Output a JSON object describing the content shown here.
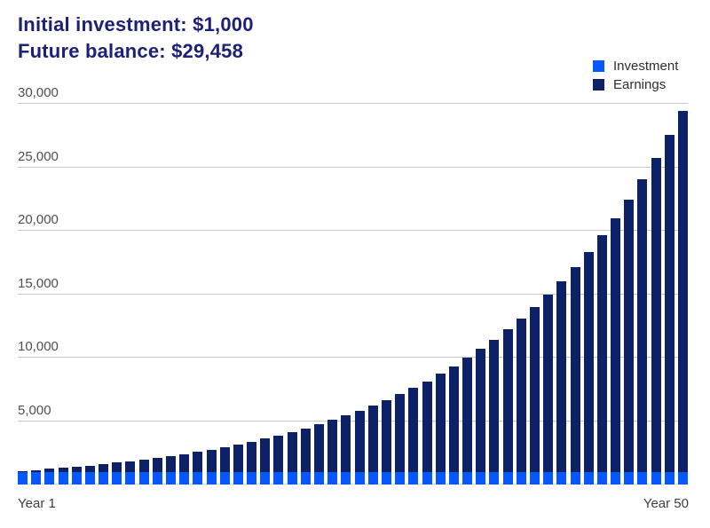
{
  "header": {
    "title_line1": "Initial investment: $1,000",
    "title_line2": "Future balance: $29,458"
  },
  "legend": [
    {
      "label": "Investment",
      "color": "#0657fc"
    },
    {
      "label": "Earnings",
      "color": "#0d2167"
    }
  ],
  "colors": {
    "investment": "#0657fc",
    "earnings": "#0d2167",
    "title_text": "#1c2177",
    "gridline": "#c9c9c9",
    "axis_text": "#4e4e4e"
  },
  "chart_data": {
    "type": "bar",
    "stacked": true,
    "title": "",
    "xlabel": "",
    "ylabel": "",
    "grid": "horizontal",
    "legend_position": "top-right",
    "ylim": [
      0,
      30000
    ],
    "yticks": [
      5000,
      10000,
      15000,
      20000,
      25000,
      30000
    ],
    "ytick_labels": [
      "5,000",
      "10,000",
      "15,000",
      "20,000",
      "25,000",
      "30,000"
    ],
    "x_first_label": "Year 1",
    "x_last_label": "Year 50",
    "years": 50,
    "investment_per_year": 1000,
    "series": [
      {
        "name": "Investment",
        "constant_value": 1000
      },
      {
        "name": "Earnings",
        "values": [
          70,
          145,
          225,
          311,
          403,
          501,
          606,
          718,
          838,
          967,
          1105,
          1252,
          1410,
          1579,
          1759,
          1952,
          2159,
          2380,
          2617,
          2870,
          3141,
          3430,
          3741,
          4072,
          4427,
          4807,
          5214,
          5649,
          6114,
          6612,
          7145,
          7715,
          8325,
          8978,
          9677,
          10424,
          11224,
          12079,
          12995,
          13974,
          15023,
          16144,
          17344,
          18628,
          20002,
          21473,
          23046,
          24729,
          26530,
          28458
        ]
      }
    ],
    "totals": [
      1070,
      1145,
      1225,
      1311,
      1403,
      1501,
      1606,
      1718,
      1838,
      1967,
      2105,
      2252,
      2410,
      2579,
      2759,
      2952,
      3159,
      3380,
      3617,
      3870,
      4141,
      4430,
      4741,
      5072,
      5427,
      5807,
      6214,
      6649,
      7114,
      7612,
      8145,
      8715,
      9325,
      9978,
      10677,
      11424,
      12224,
      13079,
      13995,
      14974,
      16023,
      17144,
      18344,
      19628,
      21002,
      22473,
      24046,
      25729,
      27530,
      29458
    ]
  }
}
